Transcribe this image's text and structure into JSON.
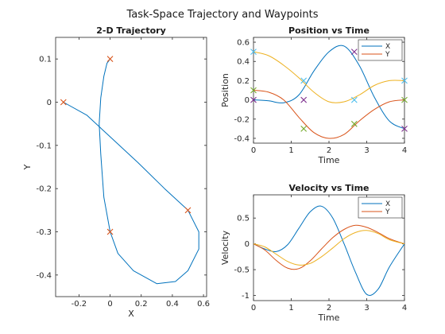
{
  "figure": {
    "title": "Task-Space Trajectory and Waypoints"
  },
  "colors": {
    "x": "#0072BD",
    "y": "#D95319",
    "third": "#EDB120",
    "cross_x": "#7E2F8E",
    "cross_y": "#77AC30",
    "cross_t": "#4DBEEE",
    "cross_red": "#D95319"
  },
  "chart_data": [
    {
      "id": "trajectory",
      "type": "line",
      "title": "2-D Trajectory",
      "xlabel": "X",
      "ylabel": "Y",
      "xlim": [
        -0.35,
        0.62
      ],
      "ylim": [
        -0.45,
        0.15
      ],
      "xticks": [
        -0.2,
        0,
        0.2,
        0.4,
        0.6
      ],
      "xtick_labels": [
        "-0.2",
        "0",
        "0.2",
        "0.4",
        "0.6"
      ],
      "yticks": [
        0.1,
        0,
        -0.1,
        -0.2,
        -0.3,
        -0.4
      ],
      "ytick_labels": [
        "0.1",
        "0",
        "-0.1",
        "-0.2",
        "-0.3",
        "-0.4"
      ],
      "path": {
        "x": [
          -0.3,
          -0.15,
          0.0,
          0.18,
          0.35,
          0.5,
          0.57,
          0.57,
          0.5,
          0.42,
          0.3,
          0.15,
          0.05,
          0.0,
          -0.04,
          -0.06,
          -0.07,
          -0.06,
          -0.04,
          -0.02,
          0.0
        ],
        "y": [
          0.0,
          -0.03,
          -0.08,
          -0.14,
          -0.2,
          -0.25,
          -0.3,
          -0.34,
          -0.39,
          -0.415,
          -0.42,
          -0.39,
          -0.35,
          -0.3,
          -0.22,
          -0.12,
          -0.05,
          0.01,
          0.06,
          0.09,
          0.1
        ]
      },
      "waypoints": [
        {
          "x": 0.0,
          "y": 0.1
        },
        {
          "x": 0.5,
          "y": -0.25
        },
        {
          "x": 0.0,
          "y": -0.3
        },
        {
          "x": -0.3,
          "y": 0.0
        }
      ]
    },
    {
      "id": "position",
      "type": "line",
      "title": "Position vs Time",
      "xlabel": "Time",
      "ylabel": "Position",
      "xlim": [
        0,
        4
      ],
      "ylim": [
        -0.45,
        0.65
      ],
      "xticks": [
        0,
        1,
        2,
        3,
        4
      ],
      "xtick_labels": [
        "0",
        "1",
        "2",
        "3",
        "4"
      ],
      "yticks": [
        0.6,
        0.4,
        0.2,
        0,
        -0.2,
        -0.4
      ],
      "ytick_labels": [
        "0.6",
        "0.4",
        "0.2",
        "0",
        "-0.2",
        "-0.4"
      ],
      "legend": [
        "X",
        "Y"
      ],
      "series": [
        {
          "t": [
            0,
            0.4,
            0.8,
            1.2,
            1.6,
            2.0,
            2.4,
            2.8,
            3.2,
            3.6,
            4.0
          ],
          "values": [
            0.0,
            -0.01,
            -0.03,
            0.05,
            0.3,
            0.5,
            0.56,
            0.36,
            0.03,
            -0.22,
            -0.3
          ]
        },
        {
          "t": [
            0,
            0.4,
            0.8,
            1.2,
            1.6,
            2.0,
            2.4,
            2.8,
            3.2,
            3.6,
            4.0
          ],
          "values": [
            0.1,
            0.08,
            0.0,
            -0.18,
            -0.34,
            -0.4,
            -0.36,
            -0.22,
            -0.1,
            -0.02,
            0.0
          ]
        },
        {
          "t": [
            0,
            0.4,
            0.8,
            1.2,
            1.6,
            2.0,
            2.4,
            2.8,
            3.2,
            3.6,
            4.0
          ],
          "values": [
            0.5,
            0.46,
            0.36,
            0.23,
            0.08,
            -0.02,
            -0.02,
            0.05,
            0.15,
            0.2,
            0.2
          ]
        }
      ],
      "waypoints": [
        {
          "t": 0,
          "v": 0.0
        },
        {
          "t": 1.33,
          "v": 0.0
        },
        {
          "t": 2.67,
          "v": 0.5
        },
        {
          "t": 4.0,
          "v": -0.3
        },
        {
          "t": 0,
          "v": 0.1
        },
        {
          "t": 1.33,
          "v": -0.3
        },
        {
          "t": 2.67,
          "v": -0.25
        },
        {
          "t": 4.0,
          "v": 0.0
        },
        {
          "t": 0,
          "v": 0.5
        },
        {
          "t": 1.33,
          "v": 0.2
        },
        {
          "t": 2.67,
          "v": 0.0
        },
        {
          "t": 4.0,
          "v": 0.2
        }
      ]
    },
    {
      "id": "velocity",
      "type": "line",
      "title": "Velocity vs Time",
      "xlabel": "Time",
      "ylabel": "Velocity",
      "xlim": [
        0,
        4
      ],
      "ylim": [
        -1.1,
        0.95
      ],
      "xticks": [
        0,
        1,
        2,
        3,
        4
      ],
      "xtick_labels": [
        "0",
        "1",
        "2",
        "3",
        "4"
      ],
      "yticks": [
        0.5,
        0,
        -0.5,
        -1
      ],
      "ytick_labels": [
        "0.5",
        "0",
        "-0.5",
        "-1"
      ],
      "legend": [
        "X",
        "Y"
      ],
      "series": [
        {
          "t": [
            0,
            0.3,
            0.6,
            0.9,
            1.2,
            1.5,
            1.8,
            2.1,
            2.4,
            2.7,
            3.0,
            3.3,
            3.6,
            4.0
          ],
          "values": [
            0.0,
            -0.1,
            -0.15,
            -0.02,
            0.3,
            0.62,
            0.73,
            0.5,
            0.0,
            -0.55,
            -0.98,
            -0.88,
            -0.45,
            0.0
          ]
        },
        {
          "t": [
            0,
            0.3,
            0.6,
            0.9,
            1.2,
            1.5,
            1.8,
            2.1,
            2.4,
            2.7,
            3.0,
            3.3,
            3.6,
            4.0
          ],
          "values": [
            0.0,
            -0.12,
            -0.32,
            -0.47,
            -0.48,
            -0.33,
            -0.1,
            0.12,
            0.28,
            0.36,
            0.32,
            0.22,
            0.1,
            0.0
          ]
        },
        {
          "t": [
            0,
            0.3,
            0.6,
            0.9,
            1.2,
            1.5,
            1.8,
            2.1,
            2.4,
            2.7,
            3.0,
            3.3,
            3.6,
            4.0
          ],
          "values": [
            0.0,
            -0.06,
            -0.2,
            -0.34,
            -0.41,
            -0.38,
            -0.25,
            -0.08,
            0.1,
            0.22,
            0.26,
            0.2,
            0.08,
            0.0
          ]
        }
      ]
    }
  ]
}
